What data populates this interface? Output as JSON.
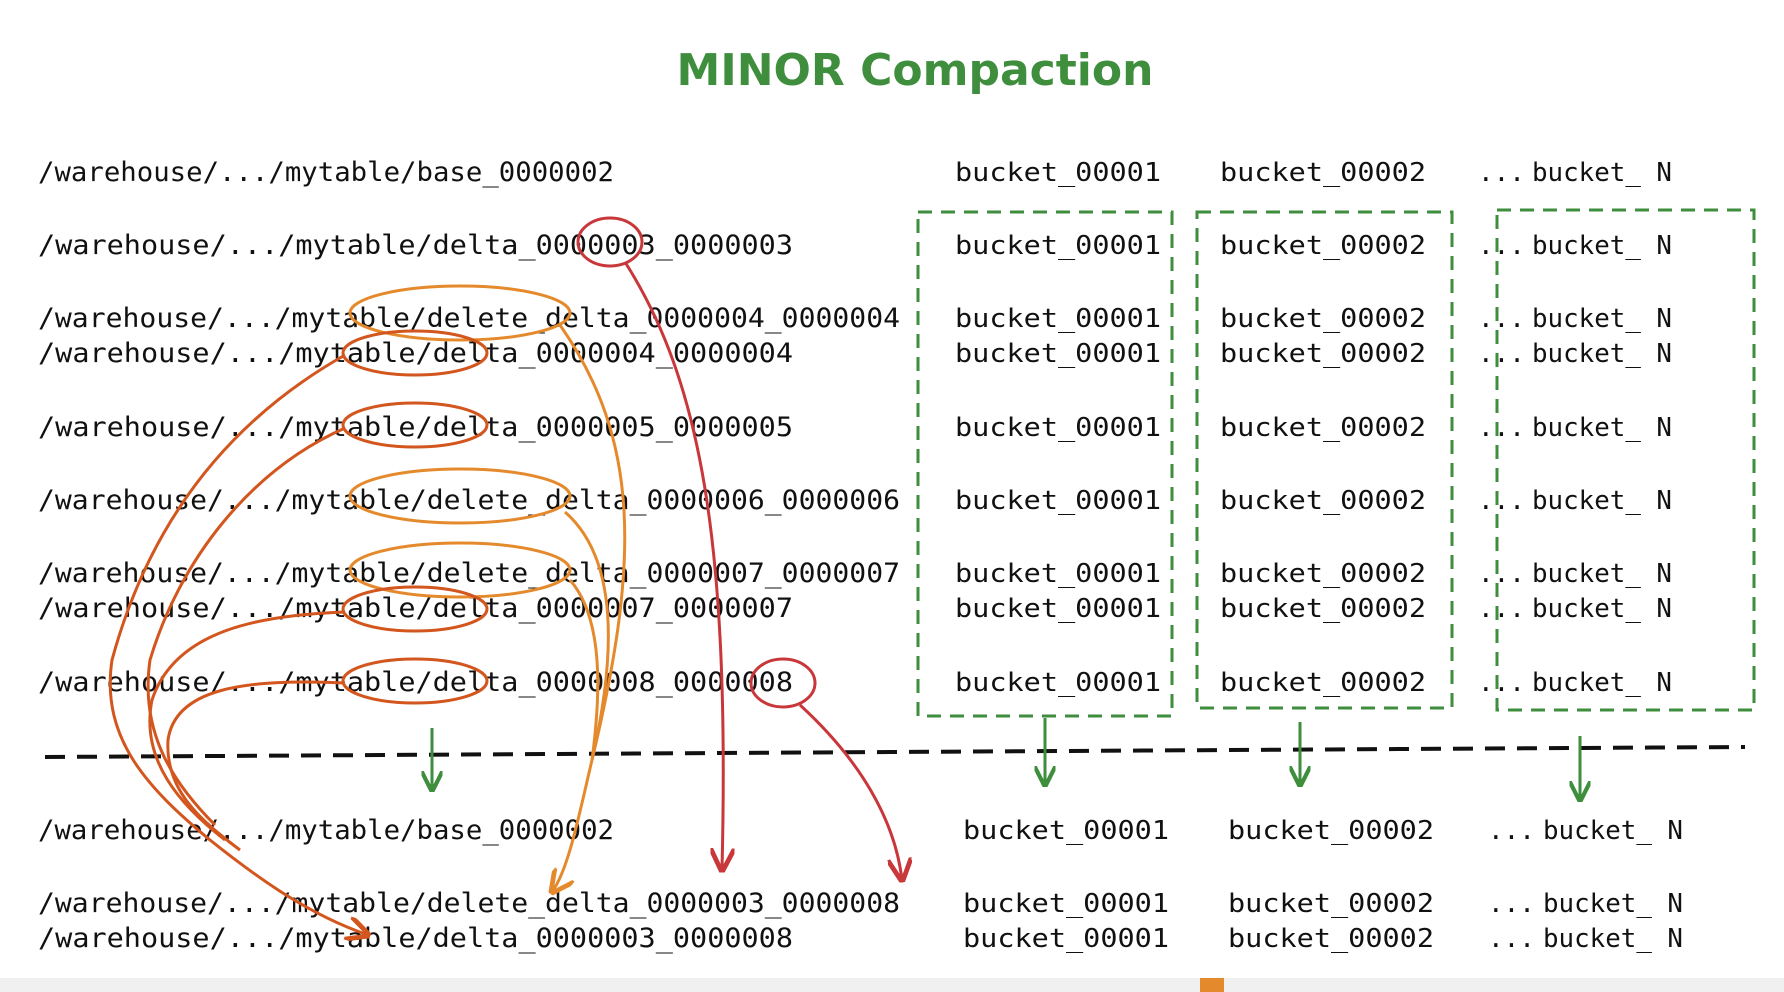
{
  "title": "MINOR Compaction",
  "colors": {
    "ink": "#111111",
    "green": "#3e8e3e",
    "orange": "#e58a2c",
    "red": "#c8373a",
    "rust": "#d2561d"
  },
  "bucket_labels": [
    "bucket_00001",
    "bucket_00002",
    "...",
    "bucket_ N"
  ],
  "input_rows": [
    {
      "path": "/warehouse/.../mytable/base_0000002"
    },
    {
      "path": "/warehouse/.../mytable/delta_0000003_0000003"
    },
    {
      "path": "/warehouse/.../mytable/delete_delta_0000004_0000004"
    },
    {
      "path": "/warehouse/.../mytable/delta_0000004_0000004"
    },
    {
      "path": "/warehouse/.../mytable/delta_0000005_0000005"
    },
    {
      "path": "/warehouse/.../mytable/delete_delta_0000006_0000006"
    },
    {
      "path": "/warehouse/.../mytable/delete_delta_0000007_0000007"
    },
    {
      "path": "/warehouse/.../mytable/delta_0000007_0000007"
    },
    {
      "path": "/warehouse/.../mytable/delta_0000008_0000008"
    }
  ],
  "output_rows": [
    {
      "path": "/warehouse/.../mytable/base_0000002"
    },
    {
      "path": "/warehouse/.../mytable/delete_delta_0000003_0000008"
    },
    {
      "path": "/warehouse/.../mytable/delta_0000003_0000008"
    }
  ]
}
